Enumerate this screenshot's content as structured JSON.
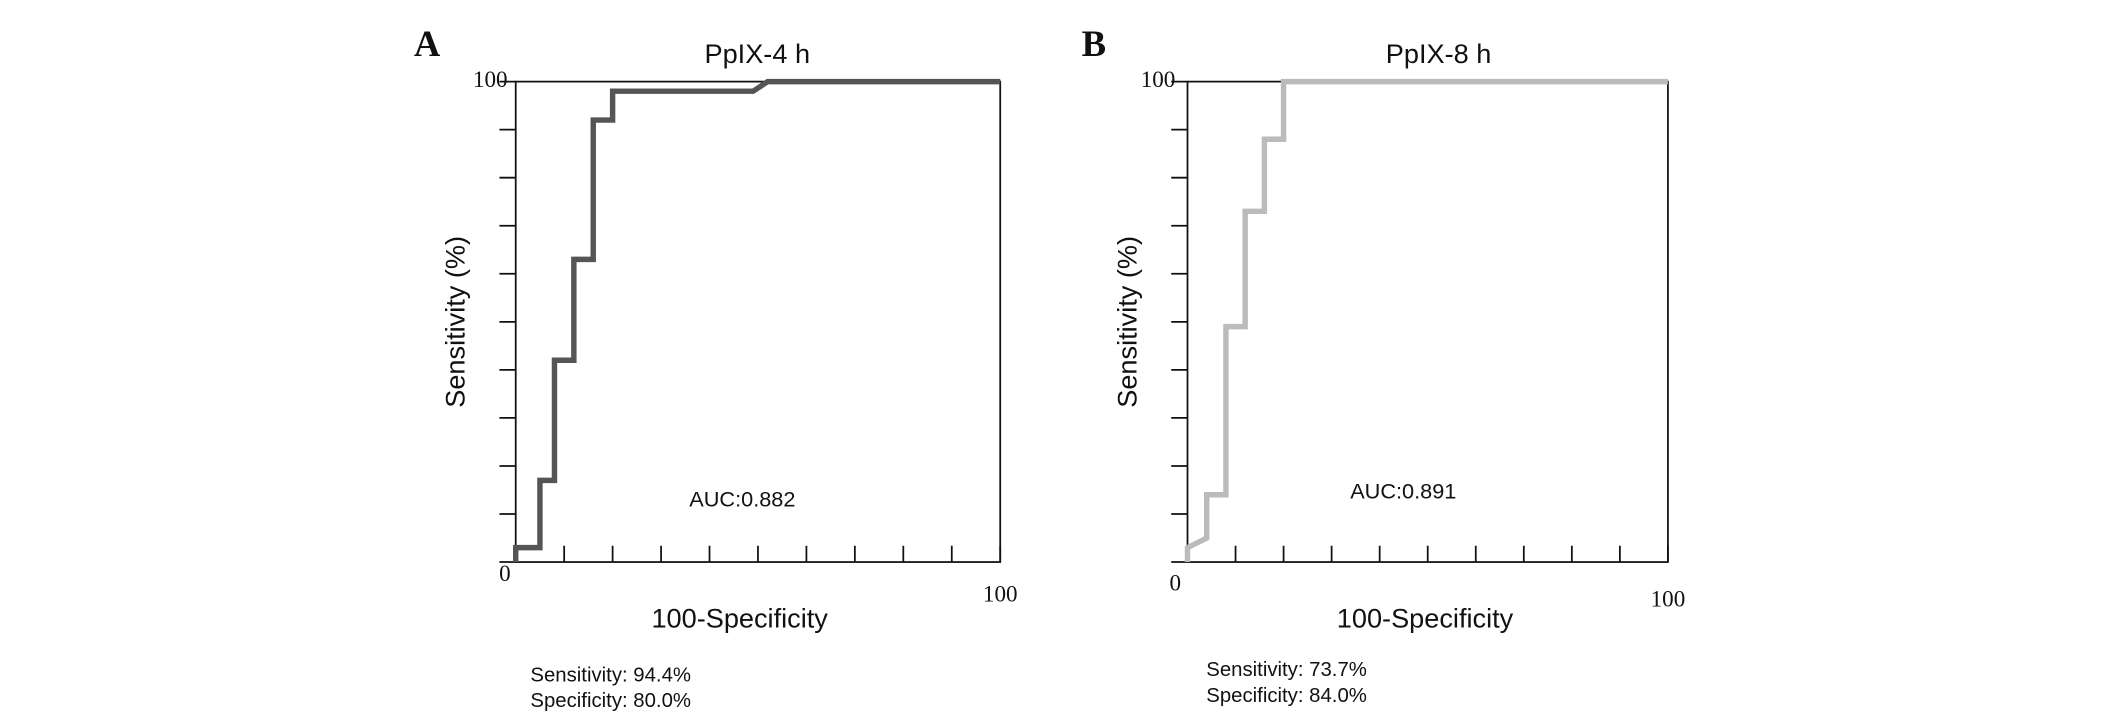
{
  "chart_data": [
    {
      "type": "line",
      "panel_label": "A",
      "title": "PpIX-4 h",
      "xlabel": "100-Specificity",
      "ylabel": "Sensitivity (%)",
      "annotation": "AUC:0.882",
      "notes": [
        "Sensitivity: 94.4%",
        "Specificity: 80.0%"
      ],
      "color": "#555555",
      "x": [
        0,
        0,
        5,
        5,
        8,
        8,
        12,
        12,
        16,
        16,
        20,
        20,
        49,
        52,
        100
      ],
      "values": [
        0,
        3,
        3,
        17,
        17,
        42,
        42,
        63,
        63,
        92,
        92,
        98,
        98,
        100,
        100
      ],
      "xlim": [
        0,
        100
      ],
      "ylim": [
        0,
        100
      ],
      "xticks": [
        {
          "value": 0,
          "label": null
        },
        {
          "value": 10,
          "label": null
        },
        {
          "value": 20,
          "label": null
        },
        {
          "value": 30,
          "label": null
        },
        {
          "value": 40,
          "label": null
        },
        {
          "value": 50,
          "label": null
        },
        {
          "value": 60,
          "label": null
        },
        {
          "value": 70,
          "label": null
        },
        {
          "value": 80,
          "label": null
        },
        {
          "value": 90,
          "label": null
        },
        100
      ],
      "yticks": [
        0,
        {
          "value": 10,
          "label": null
        },
        {
          "value": 20,
          "label": null
        },
        {
          "value": 30,
          "label": null
        },
        {
          "value": 40,
          "label": null
        },
        {
          "value": 50,
          "label": null
        },
        {
          "value": 60,
          "label": null
        },
        {
          "value": 70,
          "label": null
        },
        {
          "value": 80,
          "label": null
        },
        {
          "value": 90,
          "label": null
        },
        100
      ]
    },
    {
      "type": "line",
      "panel_label": "B",
      "title": "PpIX-8 h",
      "xlabel": "100-Specificity",
      "ylabel": "Sensitivity (%)",
      "annotation": "AUC:0.891",
      "notes": [
        "Sensitivity: 73.7%",
        "Specificity: 84.0%"
      ],
      "color": "#bbbbbb",
      "x": [
        0,
        0,
        4,
        4,
        8,
        8,
        12,
        12,
        16,
        16,
        20,
        20,
        100
      ],
      "values": [
        0,
        3,
        5,
        14,
        14,
        49,
        49,
        73,
        73,
        88,
        88,
        100,
        100
      ],
      "xlim": [
        0,
        100
      ],
      "ylim": [
        0,
        100
      ],
      "xticks": [
        {
          "value": 0,
          "label": null
        },
        {
          "value": 10,
          "label": null
        },
        {
          "value": 20,
          "label": null
        },
        {
          "value": 30,
          "label": null
        },
        {
          "value": 40,
          "label": null
        },
        {
          "value": 50,
          "label": null
        },
        {
          "value": 60,
          "label": null
        },
        {
          "value": 70,
          "label": null
        },
        {
          "value": 80,
          "label": null
        },
        {
          "value": 90,
          "label": null
        },
        100
      ],
      "yticks": [
        0,
        {
          "value": 10,
          "label": null
        },
        {
          "value": 20,
          "label": null
        },
        {
          "value": 30,
          "label": null
        },
        {
          "value": 40,
          "label": null
        },
        {
          "value": 50,
          "label": null
        },
        {
          "value": 60,
          "label": null
        },
        {
          "value": 70,
          "label": null
        },
        {
          "value": 80,
          "label": null
        },
        {
          "value": 90,
          "label": null
        },
        100
      ]
    }
  ]
}
